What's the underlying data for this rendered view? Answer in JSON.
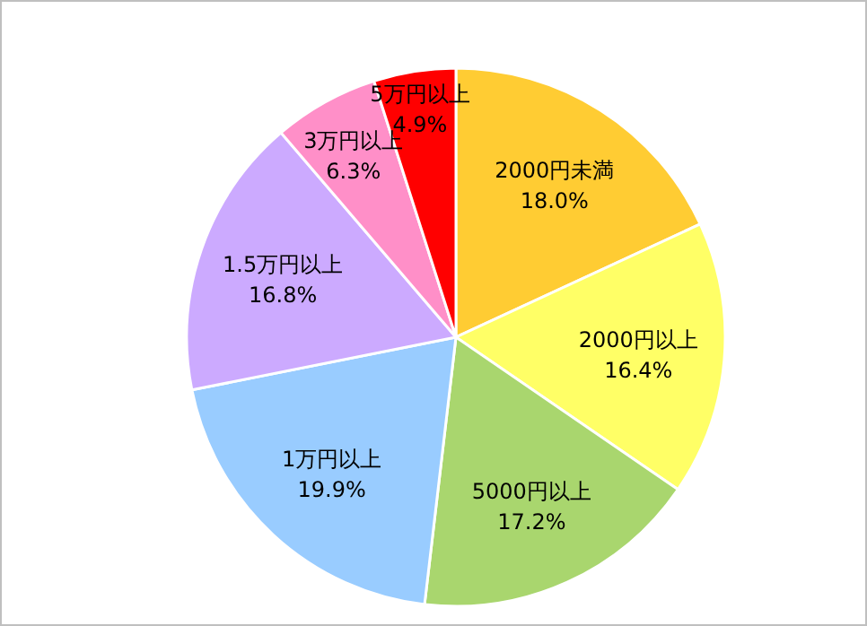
{
  "chart_data": {
    "type": "pie",
    "categories": [
      "2000円未満",
      "2000円以上",
      "5000円以上",
      "1万円以上",
      "1.5万円以上",
      "3万円以上",
      "5万円以上"
    ],
    "values": [
      18.0,
      16.4,
      17.2,
      19.9,
      16.8,
      6.3,
      4.9
    ],
    "value_labels": [
      "18.0%",
      "16.4%",
      "17.2%",
      "19.9%",
      "16.8%",
      "6.3%",
      "4.9%"
    ],
    "colors": [
      "#ffcc33",
      "#ffff66",
      "#a9d66e",
      "#99ccff",
      "#ccaaff",
      "#ff8fc8",
      "#ff0000"
    ]
  }
}
